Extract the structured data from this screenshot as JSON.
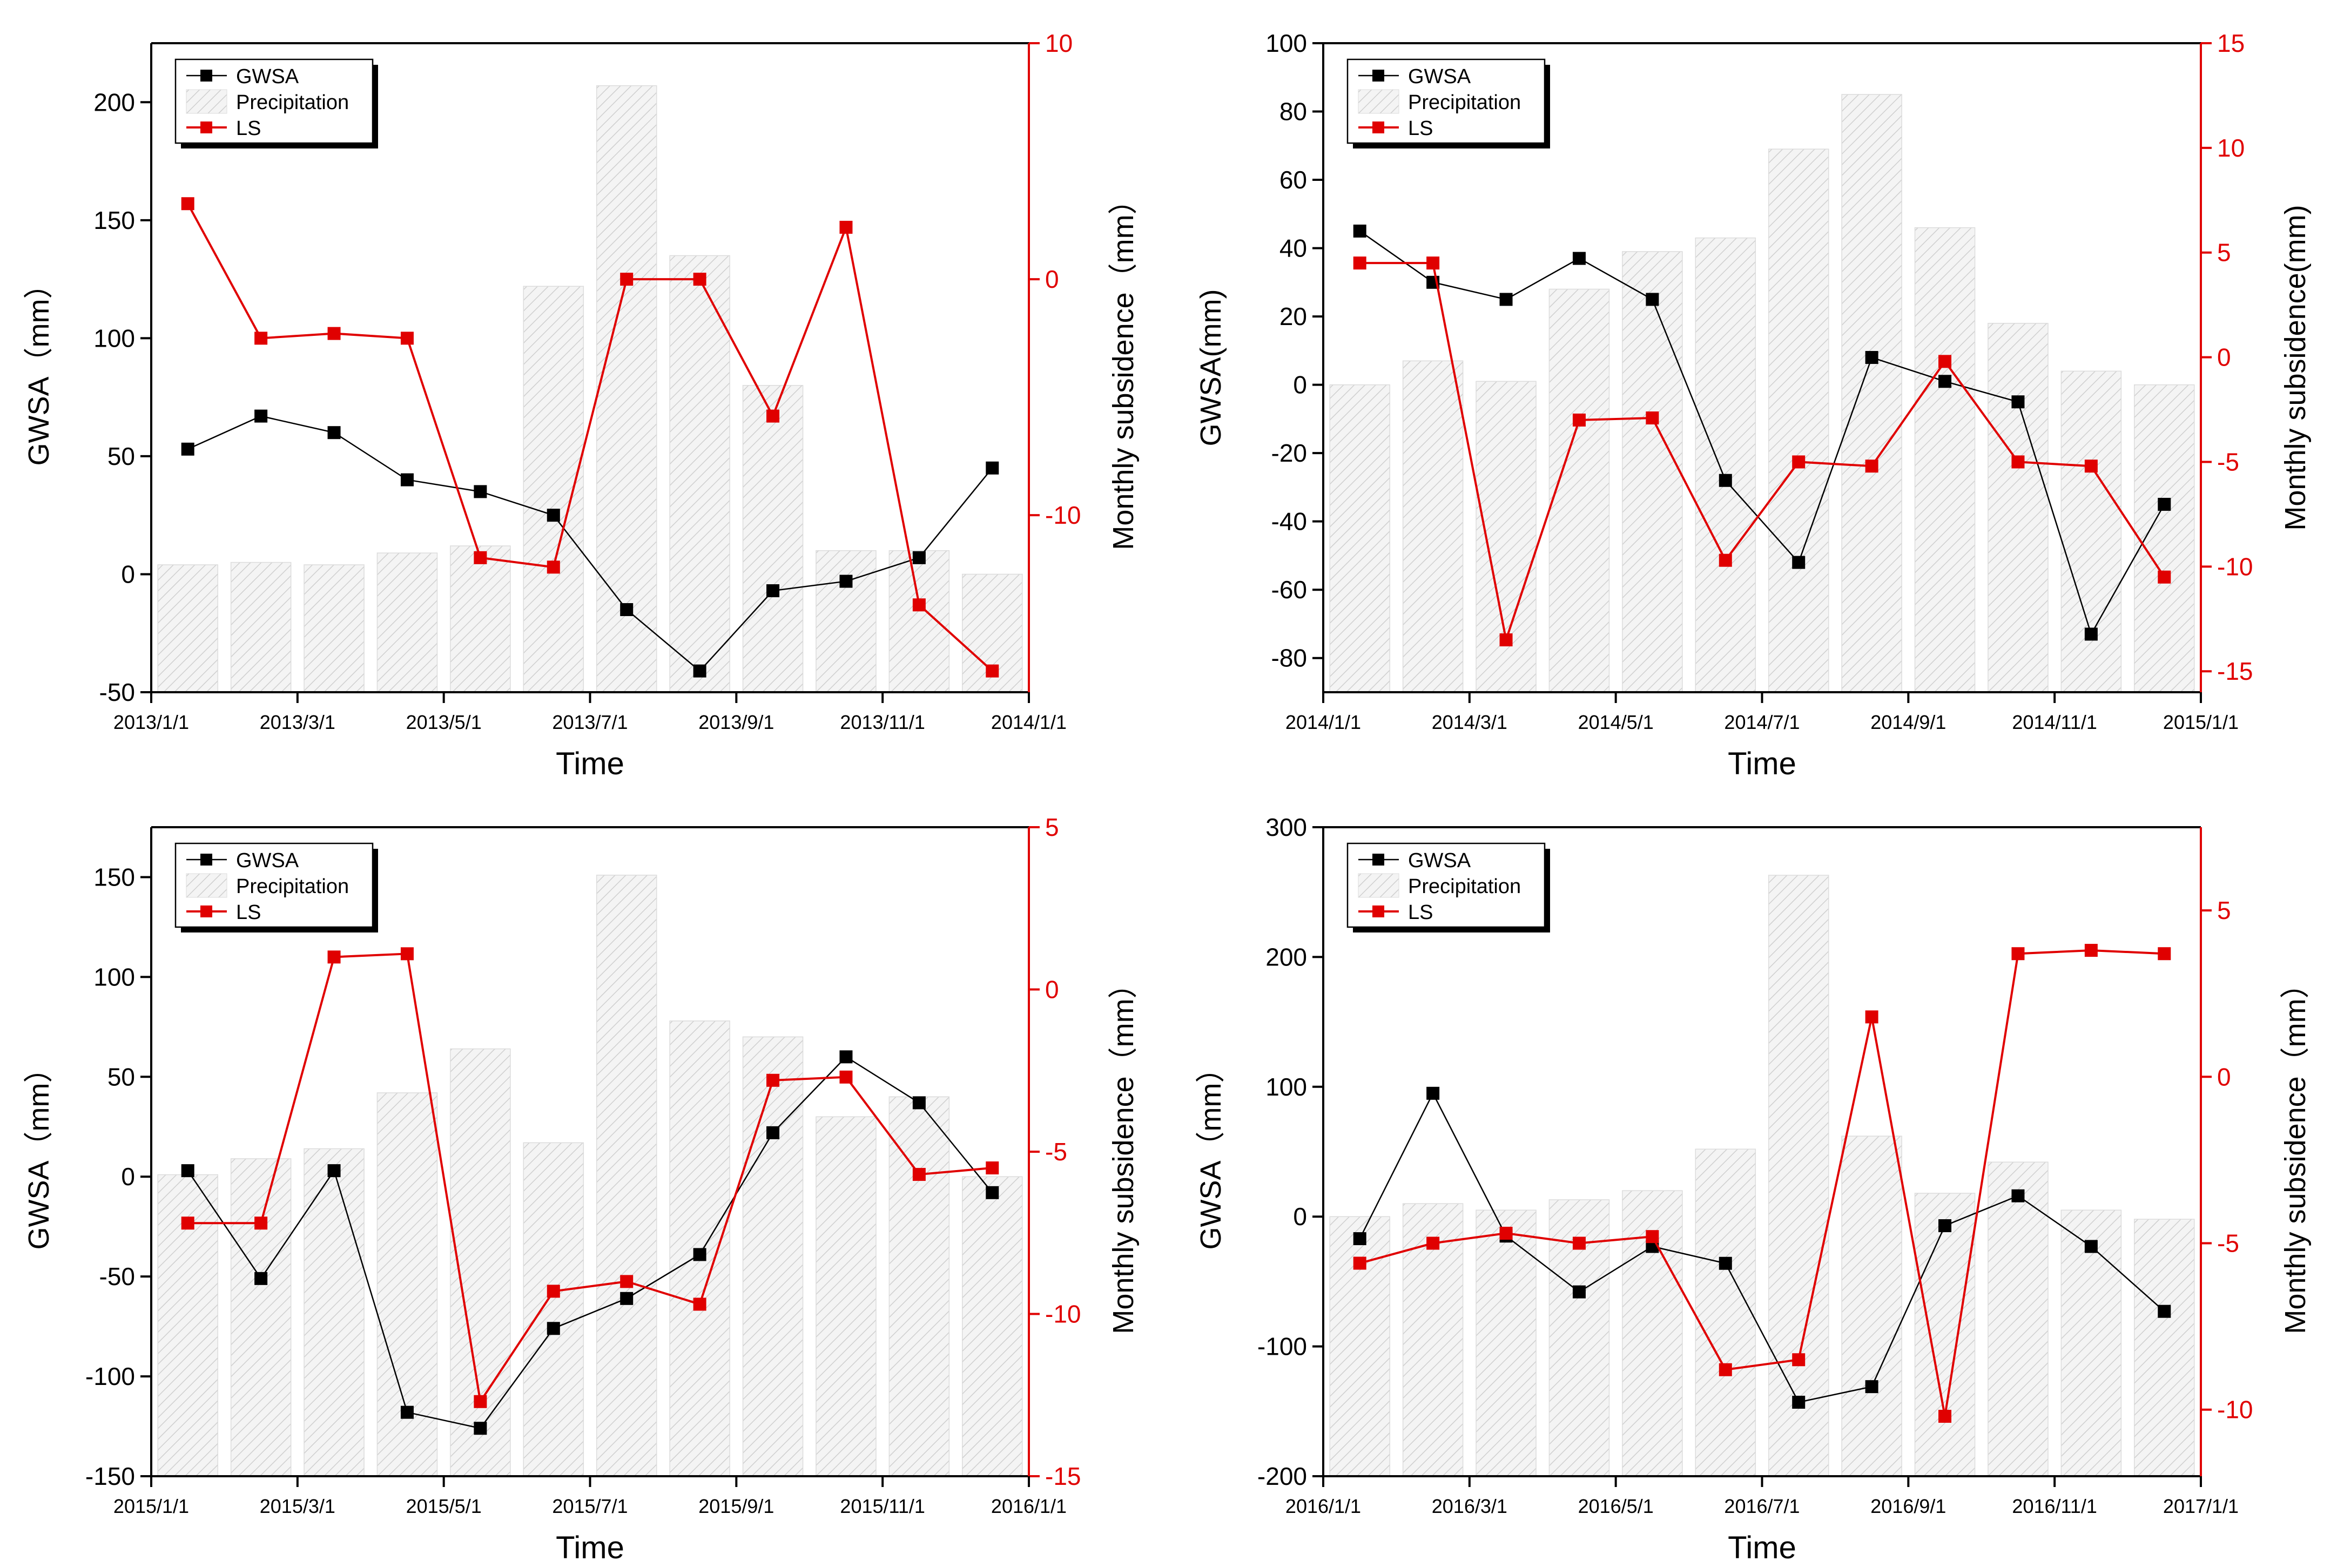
{
  "colors": {
    "gwsa": "#000000",
    "ls": "#e00000",
    "precip_fill": "#f4f4f4",
    "precip_hatch": "#cfcfcf",
    "axis": "#000000"
  },
  "chart_data": [
    {
      "type": "bar+line",
      "xlabel": "Time",
      "ylabel_left": "GWSA（mm）",
      "ylabel_right": "Monthly subsidence（mm）",
      "ylim_left": [
        -50,
        225
      ],
      "yticks_left": [
        -50,
        0,
        50,
        100,
        150,
        200
      ],
      "ylim_right": [
        -17.5,
        10
      ],
      "yticks_right": [
        -10,
        0,
        10
      ],
      "xlim": [
        0,
        12
      ],
      "xtick_labels": [
        "2013/1/1",
        "2013/3/1",
        "2013/5/1",
        "2013/7/1",
        "2013/9/1",
        "2013/11/1",
        "2014/1/1"
      ],
      "legend": [
        "GWSA",
        "Precipitation",
        "LS"
      ],
      "series": [
        {
          "name": "Precipitation",
          "axis": "left",
          "kind": "bar",
          "values": [
            4,
            5,
            4,
            9,
            12,
            122,
            207,
            135,
            80,
            10,
            10,
            0
          ]
        },
        {
          "name": "GWSA",
          "axis": "left",
          "kind": "line",
          "values": [
            53,
            67,
            60,
            40,
            35,
            25,
            -15,
            -41,
            -7,
            -3,
            7,
            45
          ]
        },
        {
          "name": "LS",
          "axis": "right",
          "kind": "line",
          "values": [
            3.2,
            -2.5,
            -2.3,
            -2.5,
            -11.8,
            -12.2,
            0,
            0,
            -5.8,
            2.2,
            -13.8,
            -16.6
          ]
        }
      ]
    },
    {
      "type": "bar+line",
      "xlabel": "Time",
      "ylabel_left": "GWSA(mm)",
      "ylabel_right": "Monthly subsidence(mm)",
      "ylim_left": [
        -90,
        100
      ],
      "yticks_left": [
        -80,
        -60,
        -40,
        -20,
        0,
        20,
        40,
        60,
        80,
        100
      ],
      "ylim_right": [
        -16,
        15
      ],
      "yticks_right": [
        -15,
        -10,
        -5,
        0,
        5,
        10,
        15
      ],
      "xlim": [
        0,
        12
      ],
      "xtick_labels": [
        "2014/1/1",
        "2014/3/1",
        "2014/5/1",
        "2014/7/1",
        "2014/9/1",
        "2014/11/1",
        "2015/1/1"
      ],
      "legend": [
        "GWSA",
        "Precipitation",
        "LS"
      ],
      "series": [
        {
          "name": "Precipitation",
          "axis": "left",
          "kind": "bar",
          "values": [
            0,
            7,
            1,
            28,
            39,
            43,
            69,
            85,
            46,
            18,
            4,
            0
          ]
        },
        {
          "name": "GWSA",
          "axis": "left",
          "kind": "line",
          "values": [
            45,
            30,
            25,
            37,
            25,
            -28,
            -52,
            8,
            1,
            -5,
            -73,
            -35
          ]
        },
        {
          "name": "LS",
          "axis": "right",
          "kind": "line",
          "values": [
            4.5,
            4.5,
            -13.5,
            -3,
            -2.9,
            -9.7,
            -5,
            -5.2,
            -0.2,
            -5,
            -5.2,
            -10.5
          ]
        }
      ]
    },
    {
      "type": "bar+line",
      "xlabel": "Time",
      "ylabel_left": "GWSA（mm）",
      "ylabel_right": "Monthly subsidence（mm）",
      "ylim_left": [
        -150,
        175
      ],
      "yticks_left": [
        -150,
        -100,
        -50,
        0,
        50,
        100,
        150
      ],
      "ylim_right": [
        -15,
        5
      ],
      "yticks_right": [
        -15,
        -10,
        -5,
        0,
        5
      ],
      "xlim": [
        0,
        12
      ],
      "xtick_labels": [
        "2015/1/1",
        "2015/3/1",
        "2015/5/1",
        "2015/7/1",
        "2015/9/1",
        "2015/11/1",
        "2016/1/1"
      ],
      "legend": [
        "GWSA",
        "Precipitation",
        "LS"
      ],
      "series": [
        {
          "name": "Precipitation",
          "axis": "left",
          "kind": "bar",
          "values": [
            1,
            9,
            14,
            42,
            64,
            17,
            151,
            78,
            70,
            30,
            40,
            0
          ]
        },
        {
          "name": "GWSA",
          "axis": "left",
          "kind": "line",
          "values": [
            3,
            -51,
            3,
            -118,
            -126,
            -76,
            -61,
            -39,
            22,
            60,
            37,
            -8
          ]
        },
        {
          "name": "LS",
          "axis": "right",
          "kind": "line",
          "values": [
            -7.2,
            -7.2,
            1,
            1.1,
            -12.7,
            -9.3,
            -9,
            -9.7,
            -2.8,
            -2.7,
            -5.7,
            -5.5
          ]
        }
      ]
    },
    {
      "type": "bar+line",
      "xlabel": "Time",
      "ylabel_left": "GWSA（mm）",
      "ylabel_right": "Monthly subsidence（mm）",
      "ylim_left": [
        -200,
        300
      ],
      "yticks_left": [
        -200,
        -100,
        0,
        100,
        200,
        300
      ],
      "ylim_right": [
        -12,
        7.5
      ],
      "yticks_right": [
        -10,
        -5,
        0,
        5
      ],
      "xlim": [
        0,
        12
      ],
      "xtick_labels": [
        "2016/1/1",
        "2016/3/1",
        "2016/5/1",
        "2016/7/1",
        "2016/9/1",
        "2016/11/1",
        "2017/1/1"
      ],
      "legend": [
        "GWSA",
        "Precipitation",
        "LS"
      ],
      "series": [
        {
          "name": "Precipitation",
          "axis": "left",
          "kind": "bar",
          "values": [
            0,
            10,
            5,
            13,
            20,
            52,
            263,
            62,
            18,
            42,
            5,
            -2
          ]
        },
        {
          "name": "GWSA",
          "axis": "left",
          "kind": "line",
          "values": [
            -17,
            95,
            -15,
            -58,
            -23,
            -36,
            -143,
            -131,
            -7,
            16,
            -23,
            -73
          ]
        },
        {
          "name": "LS",
          "axis": "right",
          "kind": "line",
          "values": [
            -5.6,
            -5,
            -4.7,
            -5,
            -4.8,
            -8.8,
            -8.5,
            1.8,
            -10.2,
            3.7,
            3.8,
            3.7
          ]
        }
      ]
    }
  ]
}
